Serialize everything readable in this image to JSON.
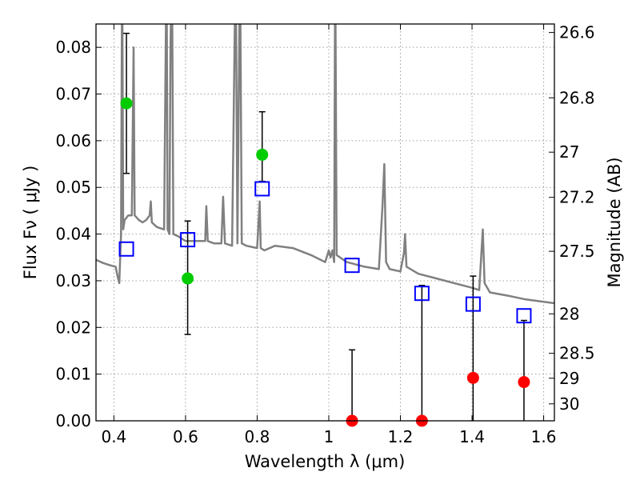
{
  "chart_data": {
    "type": "scatter",
    "title": "",
    "xlabel": "Wavelength  λ (μm)",
    "ylabel": "Flux  Fν  ( μJy )",
    "ylabel_right": "Magnitude (AB)",
    "xlim": [
      0.35,
      1.63
    ],
    "ylim": [
      0,
      0.085
    ],
    "grid": true,
    "x_ticks": [
      0.4,
      0.6,
      0.8,
      1.0,
      1.2,
      1.4,
      1.6
    ],
    "x_tick_labels": [
      "0.4",
      "0.6",
      "0.8",
      "1",
      "1.2",
      "1.4",
      "1.6"
    ],
    "y_ticks": [
      0,
      0.01,
      0.02,
      0.03,
      0.04,
      0.05,
      0.06,
      0.07,
      0.08
    ],
    "y_tick_labels": [
      "0.00",
      "0.01",
      "0.02",
      "0.03",
      "0.04",
      "0.05",
      "0.06",
      "0.07",
      "0.08"
    ],
    "right_ticks": [
      {
        "mag": 26.6,
        "label": "26.6"
      },
      {
        "mag": 26.8,
        "label": "26.8"
      },
      {
        "mag": 27.0,
        "label": "27"
      },
      {
        "mag": 27.2,
        "label": "27.2"
      },
      {
        "mag": 27.5,
        "label": "27.5"
      },
      {
        "mag": 28.0,
        "label": "28"
      },
      {
        "mag": 28.5,
        "label": "28.5"
      },
      {
        "mag": 29.0,
        "label": "29"
      },
      {
        "mag": 30.0,
        "label": "30"
      }
    ],
    "colors": {
      "spectrum": "#808080",
      "detection": "#00cc00",
      "upper_limit": "#ff0000",
      "model": "#0000ff",
      "error_bar": "#000000",
      "grid": "#a0a0a0"
    },
    "series": [
      {
        "marker": "circle-green",
        "points": [
          {
            "x": 0.435,
            "y": 0.068,
            "ylo": 0.053,
            "yhi": 0.083
          },
          {
            "x": 0.606,
            "y": 0.0305,
            "ylo": 0.0185,
            "yhi": 0.0428
          },
          {
            "x": 0.814,
            "y": 0.057,
            "ylo": 0.0513,
            "yhi": 0.0662
          }
        ]
      },
      {
        "marker": "circle-red",
        "points": [
          {
            "x": 1.065,
            "y": 0.0,
            "ylo": 0.0,
            "yhi": 0.0152
          },
          {
            "x": 1.26,
            "y": 0.0,
            "ylo": 0.0,
            "yhi": 0.029
          },
          {
            "x": 1.403,
            "y": 0.0092,
            "ylo": 0.0,
            "yhi": 0.031
          },
          {
            "x": 1.545,
            "y": 0.0083,
            "ylo": 0.0,
            "yhi": 0.0215
          }
        ]
      },
      {
        "marker": "square-blue",
        "points": [
          {
            "x": 0.435,
            "y": 0.0368
          },
          {
            "x": 0.606,
            "y": 0.0388
          },
          {
            "x": 0.814,
            "y": 0.0497
          },
          {
            "x": 1.065,
            "y": 0.0333
          },
          {
            "x": 1.26,
            "y": 0.0273
          },
          {
            "x": 1.403,
            "y": 0.025
          },
          {
            "x": 1.545,
            "y": 0.0225
          }
        ]
      },
      {
        "marker": "line-gray",
        "points": [
          [
            0.35,
            0.0345
          ],
          [
            0.37,
            0.0338
          ],
          [
            0.39,
            0.0333
          ],
          [
            0.405,
            0.033
          ],
          [
            0.41,
            0.031
          ],
          [
            0.415,
            0.0295
          ],
          [
            0.42,
            0.04
          ],
          [
            0.423,
            0.1
          ],
          [
            0.426,
            0.041
          ],
          [
            0.43,
            0.043
          ],
          [
            0.44,
            0.044
          ],
          [
            0.45,
            0.044
          ],
          [
            0.455,
            0.08
          ],
          [
            0.458,
            0.044
          ],
          [
            0.47,
            0.043
          ],
          [
            0.48,
            0.0425
          ],
          [
            0.49,
            0.043
          ],
          [
            0.5,
            0.044
          ],
          [
            0.503,
            0.047
          ],
          [
            0.506,
            0.0425
          ],
          [
            0.52,
            0.0415
          ],
          [
            0.54,
            0.041
          ],
          [
            0.547,
            0.1
          ],
          [
            0.55,
            0.041
          ],
          [
            0.555,
            0.04
          ],
          [
            0.558,
            0.08
          ],
          [
            0.562,
            0.1
          ],
          [
            0.566,
            0.04
          ],
          [
            0.58,
            0.0395
          ],
          [
            0.6,
            0.0385
          ],
          [
            0.62,
            0.0385
          ],
          [
            0.64,
            0.0385
          ],
          [
            0.655,
            0.0385
          ],
          [
            0.658,
            0.046
          ],
          [
            0.662,
            0.0385
          ],
          [
            0.68,
            0.038
          ],
          [
            0.7,
            0.038
          ],
          [
            0.705,
            0.048
          ],
          [
            0.71,
            0.038
          ],
          [
            0.73,
            0.0375
          ],
          [
            0.74,
            0.1
          ],
          [
            0.745,
            0.038
          ],
          [
            0.752,
            0.1
          ],
          [
            0.757,
            0.038
          ],
          [
            0.77,
            0.0375
          ],
          [
            0.8,
            0.037
          ],
          [
            0.807,
            0.047
          ],
          [
            0.81,
            0.037
          ],
          [
            0.82,
            0.0365
          ],
          [
            0.85,
            0.0375
          ],
          [
            0.9,
            0.037
          ],
          [
            0.95,
            0.0355
          ],
          [
            0.99,
            0.034
          ],
          [
            1.0,
            0.0365
          ],
          [
            1.005,
            0.035
          ],
          [
            1.01,
            0.0365
          ],
          [
            1.015,
            0.034
          ],
          [
            1.018,
            0.1
          ],
          [
            1.022,
            0.0355
          ],
          [
            1.05,
            0.034
          ],
          [
            1.1,
            0.033
          ],
          [
            1.14,
            0.0325
          ],
          [
            1.15,
            0.046
          ],
          [
            1.155,
            0.055
          ],
          [
            1.16,
            0.034
          ],
          [
            1.17,
            0.0325
          ],
          [
            1.2,
            0.032
          ],
          [
            1.21,
            0.036
          ],
          [
            1.213,
            0.04
          ],
          [
            1.217,
            0.033
          ],
          [
            1.25,
            0.0315
          ],
          [
            1.3,
            0.0305
          ],
          [
            1.35,
            0.0295
          ],
          [
            1.4,
            0.0285
          ],
          [
            1.42,
            0.028
          ],
          [
            1.43,
            0.041
          ],
          [
            1.435,
            0.0295
          ],
          [
            1.45,
            0.0275
          ],
          [
            1.5,
            0.0268
          ],
          [
            1.55,
            0.026
          ],
          [
            1.6,
            0.0255
          ],
          [
            1.63,
            0.0252
          ]
        ]
      }
    ]
  }
}
